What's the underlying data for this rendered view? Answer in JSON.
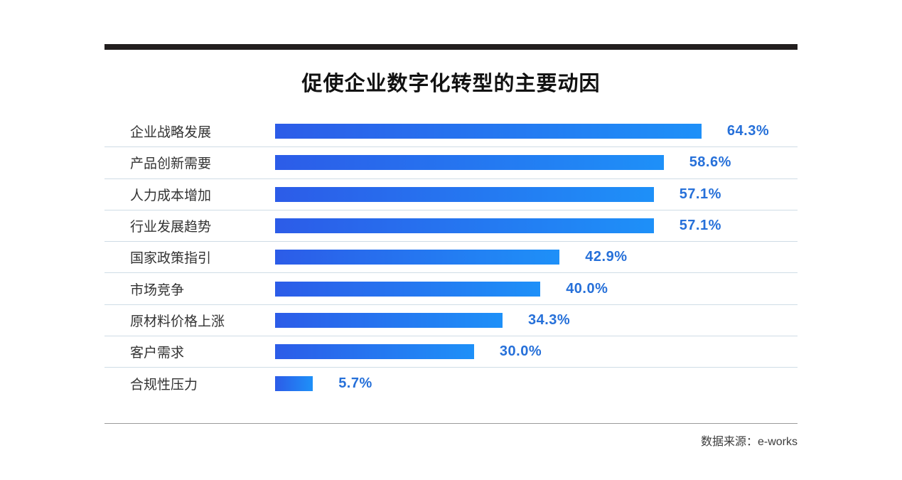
{
  "title": "促使企业数字化转型的主要动因",
  "source_note": "数据来源：e-works",
  "colors": {
    "top_rule": "#221e1e",
    "title_text": "#111111",
    "category_text": "#333333",
    "value_text": "#2670d9",
    "row_divider": "#cfdce6",
    "footer_rule": "#9b9b9b",
    "bar_gradient_start": "#2c5ce8",
    "bar_gradient_end": "#1e90f8"
  },
  "chart_data": {
    "type": "bar",
    "orientation": "horizontal",
    "title": "促使企业数字化转型的主要动因",
    "categories": [
      "企业战略发展",
      "产品创新需要",
      "人力成本增加",
      "行业发展趋势",
      "国家政策指引",
      "市场竞争",
      "原材料价格上涨",
      "客户需求",
      "合规性压力"
    ],
    "values": [
      64.3,
      58.6,
      57.1,
      57.1,
      42.9,
      40.0,
      34.3,
      30.0,
      5.7
    ],
    "value_labels": [
      "64.3%",
      "58.6%",
      "57.1%",
      "57.1%",
      "42.9%",
      "40.0%",
      "34.3%",
      "30.0%",
      "5.7%"
    ],
    "unit": "%",
    "xlim": [
      0,
      100
    ],
    "grid": "row-dividers-only",
    "legend": "none",
    "value_label_position": "right-of-bar",
    "source": "数据来源：e-works"
  }
}
